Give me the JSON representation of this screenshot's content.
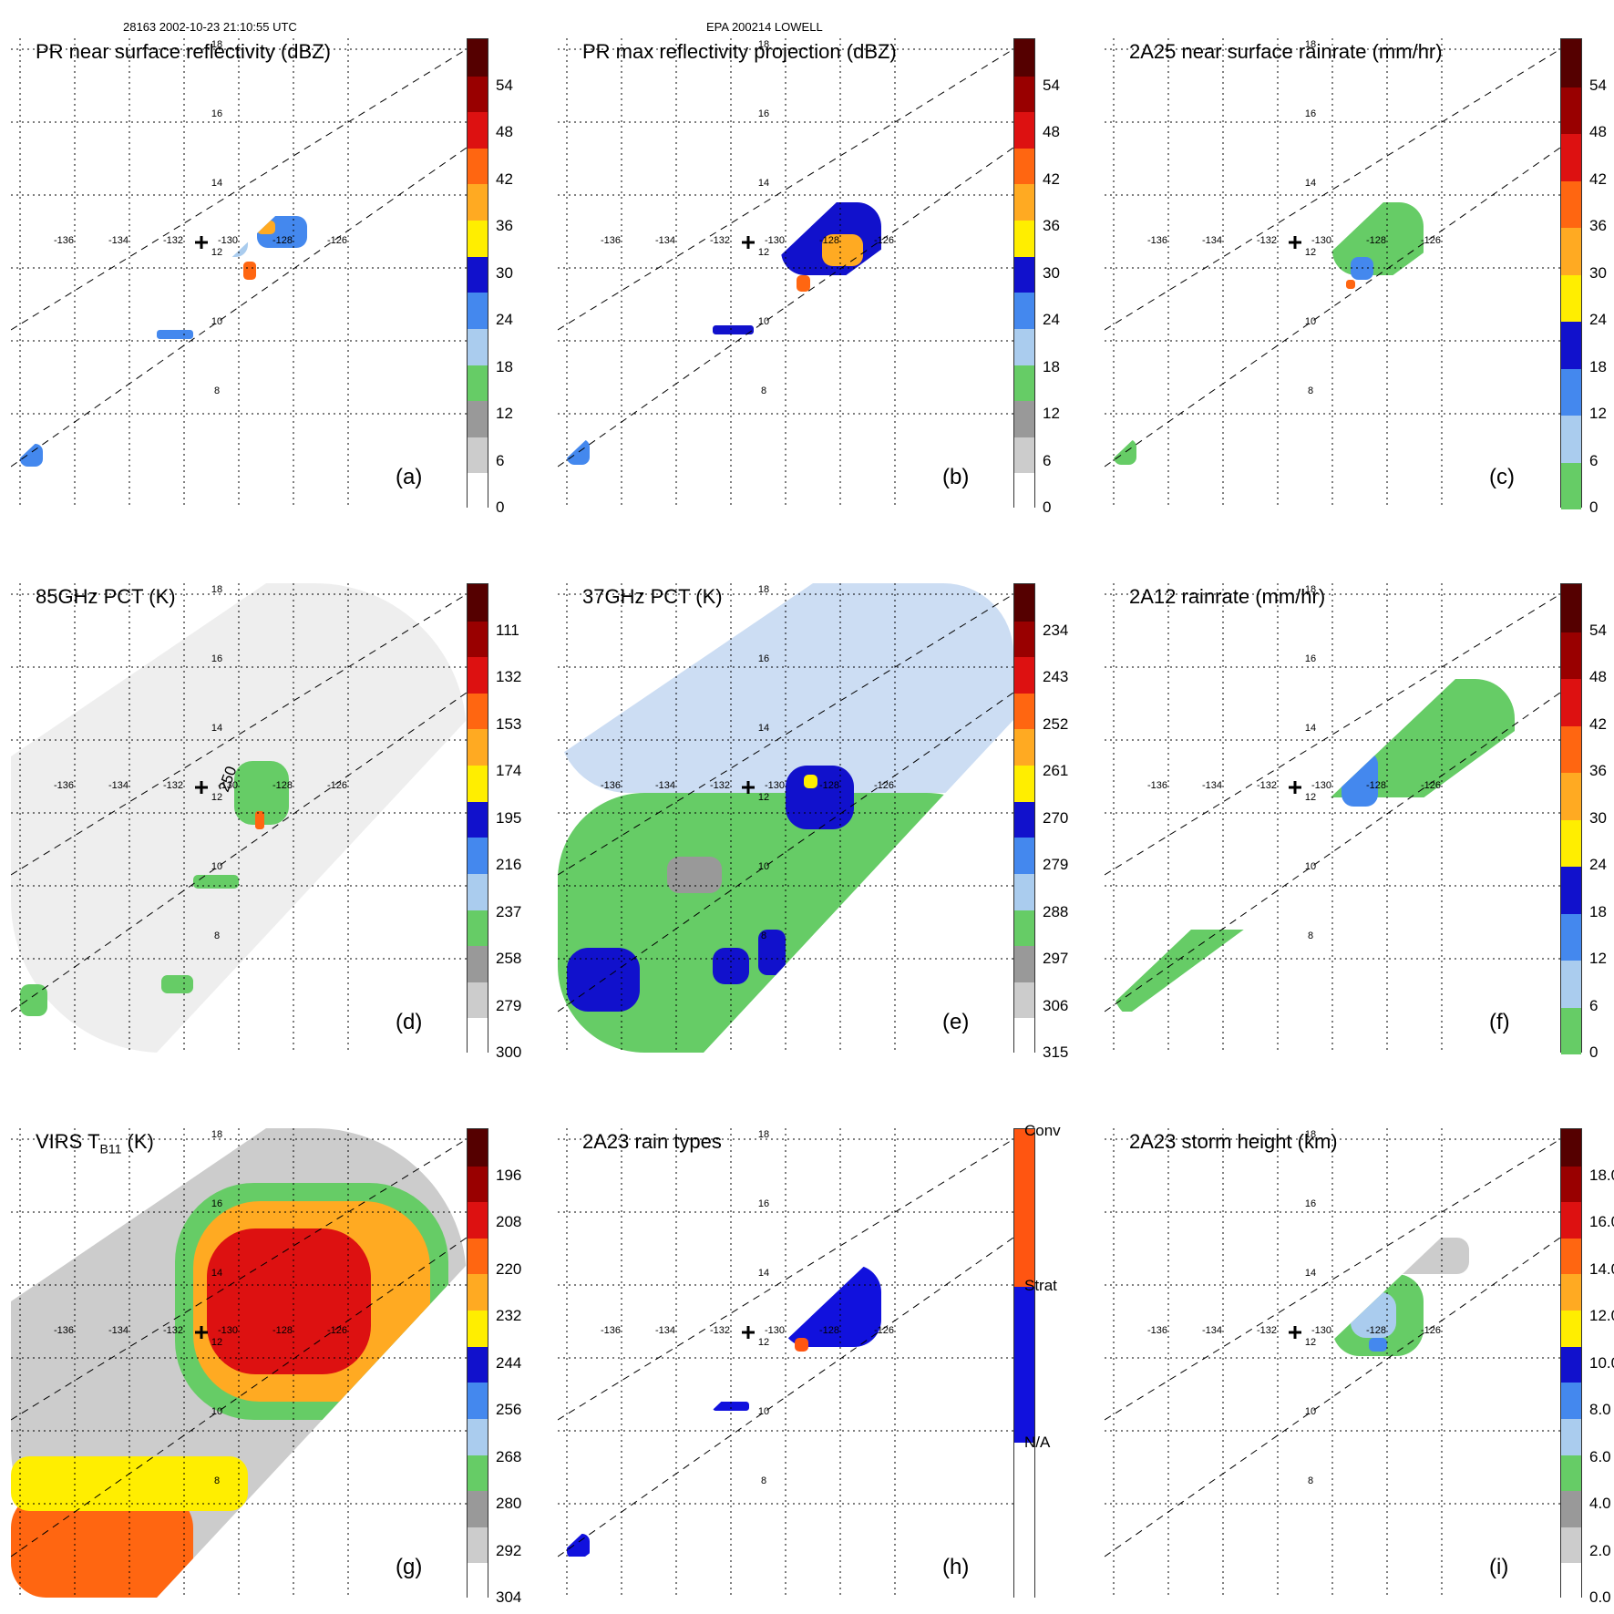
{
  "header": {
    "orbit_time": "28163 2002-10-23 21:10:55 UTC",
    "storm": "EPA 200214 LOWELL"
  },
  "map_labels": {
    "lon": [
      "-136",
      "-134",
      "-132",
      "-130",
      "-128",
      "-126"
    ],
    "lat": [
      "18",
      "16",
      "14",
      "12",
      "10",
      "8"
    ]
  },
  "panels": [
    {
      "id": "a",
      "title": "PR near surface reflectivity (dBZ)",
      "label": "(a)",
      "ticks": [
        "54",
        "48",
        "42",
        "36",
        "30",
        "24",
        "18",
        "12",
        "6",
        "0"
      ],
      "scale": "dbz"
    },
    {
      "id": "b",
      "title": "PR max reflectivity projection (dBZ)",
      "label": "(b)",
      "ticks": [
        "54",
        "48",
        "42",
        "36",
        "30",
        "24",
        "18",
        "12",
        "6",
        "0"
      ],
      "scale": "dbz"
    },
    {
      "id": "c",
      "title": "2A25 near surface rainrate (mm/hr)",
      "label": "(c)",
      "ticks": [
        "54",
        "48",
        "42",
        "36",
        "30",
        "24",
        "18",
        "12",
        "6",
        "0"
      ],
      "scale": "rain"
    },
    {
      "id": "d",
      "title": "85GHz PCT (K)",
      "label": "(d)",
      "contour_label": "250",
      "ticks": [
        "111",
        "132",
        "153",
        "174",
        "195",
        "216",
        "237",
        "258",
        "279",
        "300"
      ],
      "scale": "dbz"
    },
    {
      "id": "e",
      "title": "37GHz PCT (K)",
      "label": "(e)",
      "ticks": [
        "234",
        "243",
        "252",
        "261",
        "270",
        "279",
        "288",
        "297",
        "306",
        "315"
      ],
      "scale": "dbz"
    },
    {
      "id": "f",
      "title": "2A12 rainrate (mm/hr)",
      "label": "(f)",
      "ticks": [
        "54",
        "48",
        "42",
        "36",
        "30",
        "24",
        "18",
        "12",
        "6",
        "0"
      ],
      "scale": "rain"
    },
    {
      "id": "g",
      "title": "VIRS T",
      "title_sub": "B11",
      "title_tail": " (K)",
      "label": "(g)",
      "ticks": [
        "196",
        "208",
        "220",
        "232",
        "244",
        "256",
        "268",
        "280",
        "292",
        "304"
      ],
      "scale": "dbz"
    },
    {
      "id": "h",
      "title": "2A23 rain types",
      "label": "(h)",
      "ticks": [
        "Conv",
        "Strat",
        "N/A"
      ],
      "scale": "types"
    },
    {
      "id": "i",
      "title": "2A23 storm height (km)",
      "label": "(i)",
      "ticks": [
        "18.0",
        "16.0",
        "14.0",
        "12.0",
        "10.0",
        "8.0",
        "6.0",
        "4.0",
        "2.0",
        "0.0"
      ],
      "scale": "height"
    }
  ],
  "colors": {
    "dbz": [
      "#ffffff",
      "#cccccc",
      "#999999",
      "#66cc66",
      "#aaccee",
      "#4488ee",
      "#1111cc",
      "#ffee00",
      "#ffaa22",
      "#ff6611",
      "#dd1111",
      "#990000",
      "#550000"
    ],
    "rain": [
      "#66cc66",
      "#aaccee",
      "#4488ee",
      "#1111cc",
      "#ffee00",
      "#ffaa22",
      "#ff6611",
      "#dd1111",
      "#990000",
      "#550000"
    ],
    "types": [
      "#ffffff",
      "#1111dd",
      "#ff5511"
    ],
    "height": [
      "#ffffff",
      "#cccccc",
      "#999999",
      "#66cc66",
      "#aaccee",
      "#4488ee",
      "#1111cc",
      "#ffee00",
      "#ffaa22",
      "#ff6611",
      "#dd1111",
      "#990000",
      "#550000"
    ]
  }
}
